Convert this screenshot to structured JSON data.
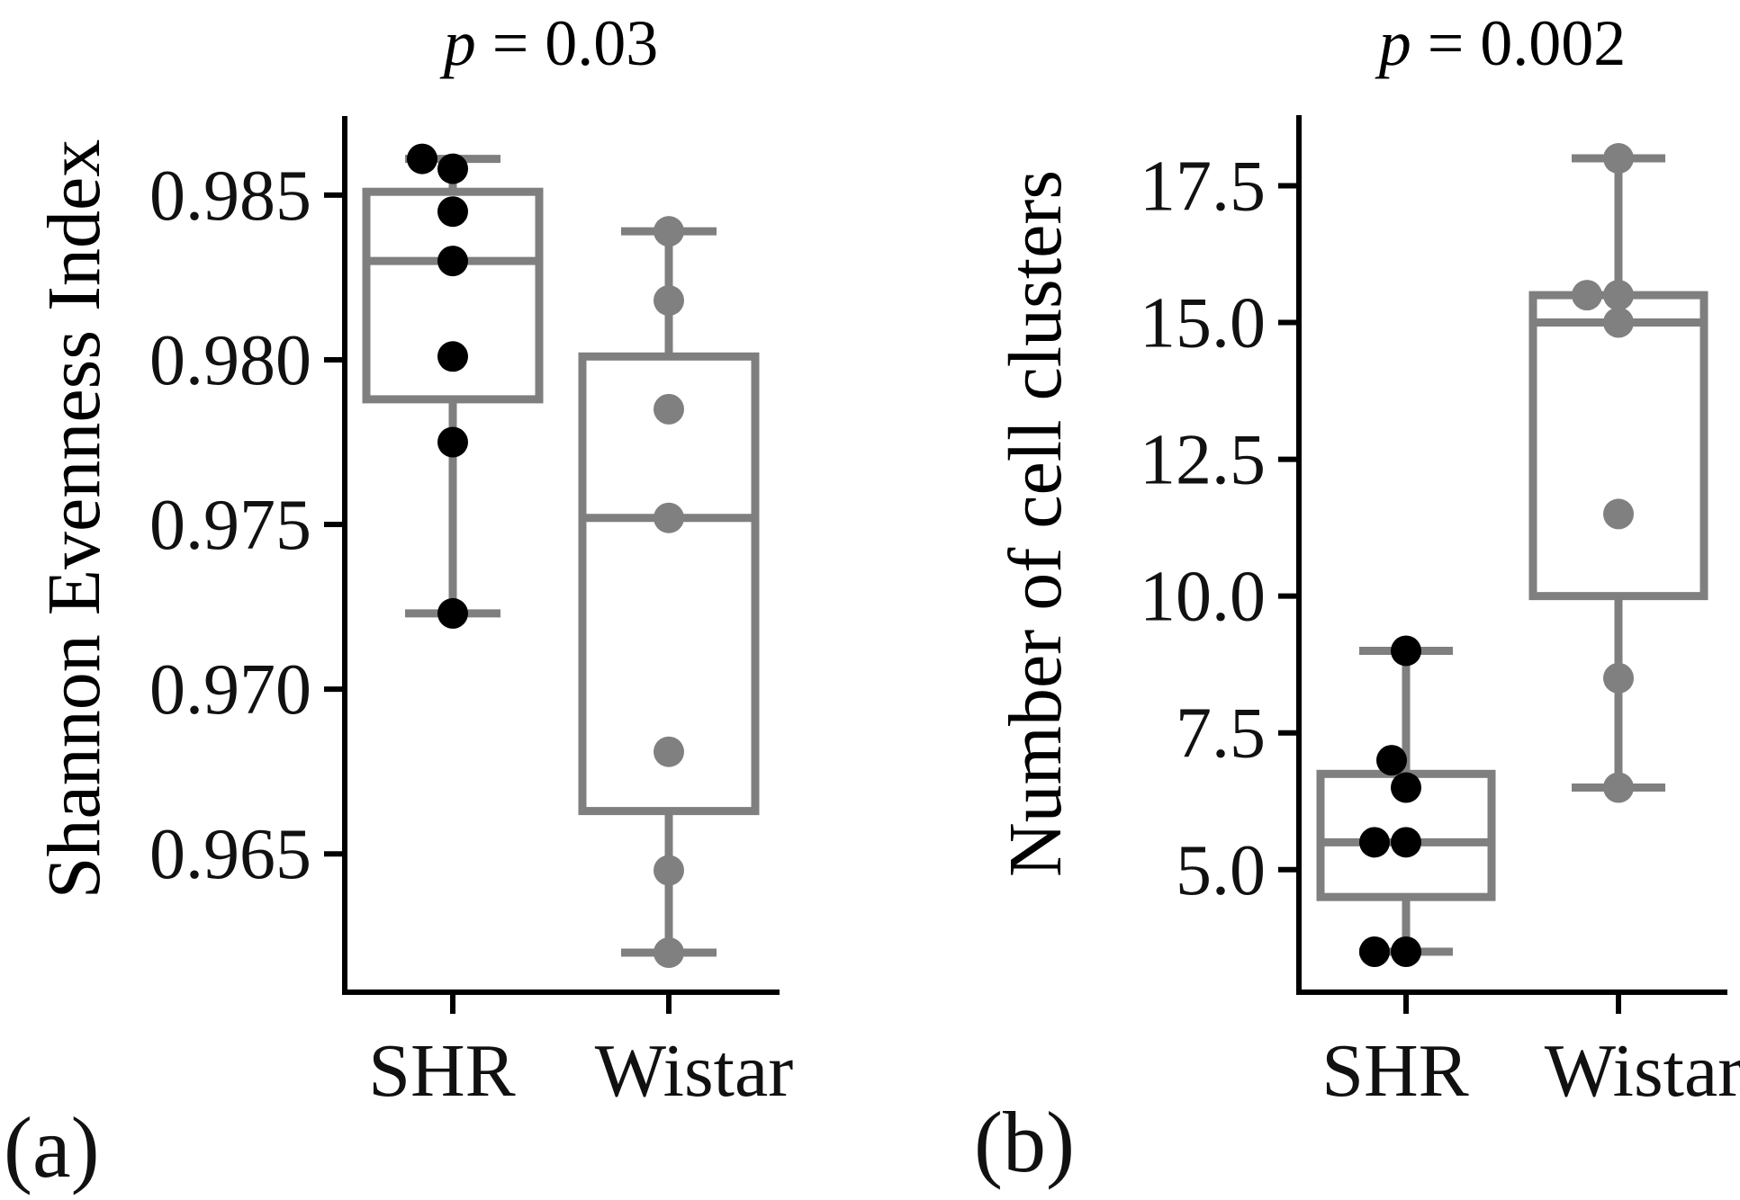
{
  "chart_data": [
    {
      "type": "box",
      "panel_label": "(a)",
      "title_var": "p",
      "title_rest": " = 0.03",
      "title": "p = 0.03",
      "xlabel": "",
      "ylabel": "Shannon Evenness Index",
      "ylim": [
        0.9608,
        0.9874
      ],
      "yticks": [
        0.965,
        0.97,
        0.975,
        0.98,
        0.985
      ],
      "ytick_labels": [
        "0.965",
        "0.970",
        "0.975",
        "0.980",
        "0.985"
      ],
      "categories": [
        "SHR",
        "Wistar"
      ],
      "grid": false,
      "series": [
        {
          "name": "SHR",
          "point_color": "#000000",
          "box_color": "#7f7f7f",
          "whisker_low": 0.9723,
          "q1": 0.9788,
          "median": 0.983,
          "q3": 0.9851,
          "whisker_high": 0.9861,
          "points": [
            0.9861,
            0.9858,
            0.9845,
            0.983,
            0.9801,
            0.9775,
            0.9723
          ]
        },
        {
          "name": "Wistar",
          "point_color": "#808080",
          "box_color": "#7f7f7f",
          "whisker_low": 0.962,
          "q1": 0.9663,
          "median": 0.9752,
          "q3": 0.9801,
          "whisker_high": 0.9839,
          "points": [
            0.9839,
            0.9818,
            0.9785,
            0.9752,
            0.9681,
            0.9645,
            0.962
          ]
        }
      ]
    },
    {
      "type": "box",
      "panel_label": "(b)",
      "title_var": "p",
      "title_rest": " = 0.002",
      "title": "p = 0.002",
      "xlabel": "",
      "ylabel": "Number of cell clusters",
      "ylim": [
        2.76,
        18.79
      ],
      "yticks": [
        5.0,
        7.5,
        10.0,
        12.5,
        15.0,
        17.5
      ],
      "ytick_labels": [
        "5.0",
        "7.5",
        "10.0",
        "12.5",
        "15.0",
        "17.5"
      ],
      "categories": [
        "SHR",
        "Wistar"
      ],
      "grid": false,
      "series": [
        {
          "name": "SHR",
          "point_color": "#000000",
          "box_color": "#7f7f7f",
          "whisker_low": 3.5,
          "q1": 4.5,
          "median": 5.5,
          "q3": 6.75,
          "whisker_high": 9.0,
          "points": [
            9.0,
            7.0,
            6.5,
            5.5,
            5.5,
            3.5,
            3.5
          ]
        },
        {
          "name": "Wistar",
          "point_color": "#808080",
          "box_color": "#7f7f7f",
          "whisker_low": 6.5,
          "q1": 10.0,
          "median": 15.0,
          "q3": 15.5,
          "whisker_high": 18.0,
          "points": [
            18.0,
            15.5,
            15.5,
            15.0,
            11.5,
            8.5,
            6.5
          ]
        }
      ]
    }
  ]
}
